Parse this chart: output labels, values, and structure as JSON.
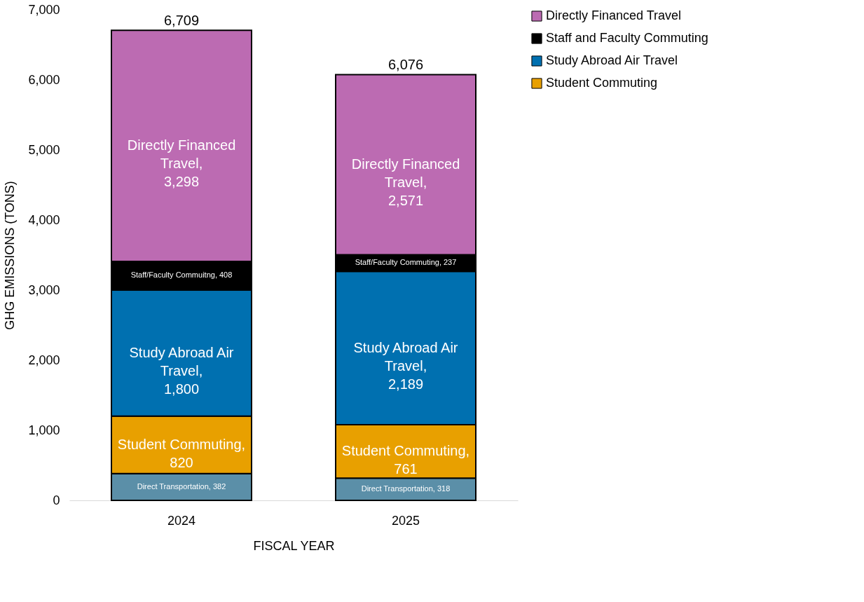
{
  "chart_data": {
    "type": "bar",
    "stacked": true,
    "xlabel": "FISCAL YEAR",
    "ylabel": "GHG EMISSIONS (TONS)",
    "categories": [
      "2024",
      "2025"
    ],
    "series": [
      {
        "color": "#5b8fa8",
        "values": [
          382,
          318
        ],
        "value_labels": [
          "Direct Transportation, 382",
          "Direct Transportation, 318"
        ]
      },
      {
        "name": "Student Commuting",
        "color": "#e8a000",
        "values": [
          820,
          761
        ],
        "value_labels": [
          "Student Commuting,\n820",
          "Student Commuting,\n761"
        ]
      },
      {
        "name": "Study Abroad Air Travel",
        "color": "#0070b0",
        "values": [
          1800,
          2189
        ],
        "value_labels": [
          "Study Abroad Air\nTravel,\n1,800",
          "Study Abroad Air\nTravel,\n2,189"
        ]
      },
      {
        "name": "Staff and Faculty Commuting",
        "color": "#000000",
        "values": [
          408,
          237
        ],
        "value_labels": [
          "Staff/Faculty Commuitng, 408",
          "Staff/Faculty Commuting, 237"
        ]
      },
      {
        "name": "Directly Financed Travel",
        "color": "#bc6bb2",
        "values": [
          3298,
          2571
        ],
        "value_labels": [
          "Directly Financed\nTravel,\n3,298",
          "Directly Financed\nTravel,\n2,571"
        ]
      }
    ],
    "totals": [
      "6,709",
      "6,076"
    ],
    "ylim": [
      0,
      7000
    ],
    "yticks": [
      0,
      {
        "value": 1000,
        "label": "1,000"
      },
      {
        "value": 2000,
        "label": "2,000"
      },
      {
        "value": 3000,
        "label": "3,000"
      },
      {
        "value": 4000,
        "label": "4,000"
      },
      {
        "value": 5000,
        "label": "5,000"
      },
      {
        "value": 6000,
        "label": "6,000"
      },
      {
        "value": 7000,
        "label": "7,000"
      }
    ],
    "grid": false,
    "legend": "right"
  }
}
